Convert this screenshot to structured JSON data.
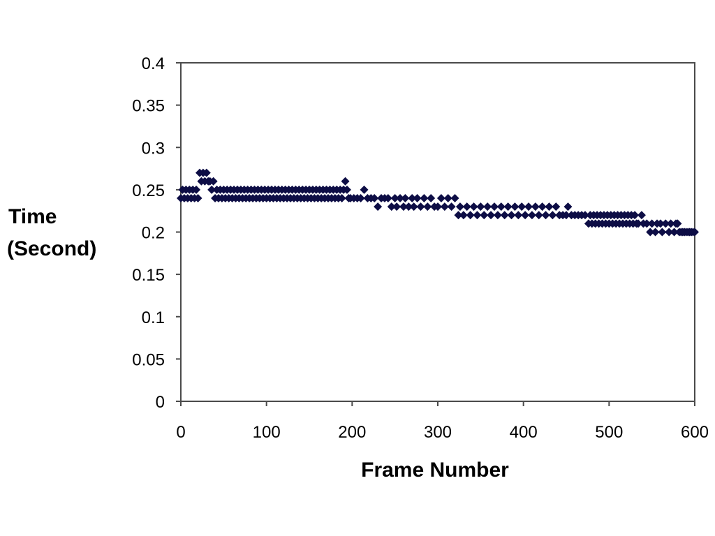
{
  "chart_data": {
    "type": "scatter",
    "title": "",
    "xlabel": "Frame Number",
    "ylabel_lines": [
      "Time",
      "(Second)"
    ],
    "xlim": [
      0,
      600
    ],
    "ylim": [
      0,
      0.4
    ],
    "x_ticks": [
      0,
      100,
      200,
      300,
      400,
      500,
      600
    ],
    "y_ticks": [
      0,
      0.05,
      0.1,
      0.15,
      0.2,
      0.25,
      0.3,
      0.35,
      0.4
    ],
    "x_tick_labels": [
      "0",
      "100",
      "200",
      "300",
      "400",
      "500",
      "600"
    ],
    "y_tick_labels": [
      "0",
      "0.05",
      "0.1",
      "0.15",
      "0.2",
      "0.25",
      "0.3",
      "0.35",
      "0.4"
    ],
    "grid": false,
    "legend": "none",
    "marker": "diamond",
    "marker_color": "#0d0d45",
    "series": [
      {
        "points": [
          [
            0,
            0.24
          ],
          [
            2,
            0.25
          ],
          [
            4,
            0.24
          ],
          [
            6,
            0.25
          ],
          [
            8,
            0.24
          ],
          [
            10,
            0.25
          ],
          [
            12,
            0.24
          ],
          [
            14,
            0.25
          ],
          [
            16,
            0.24
          ],
          [
            18,
            0.25
          ],
          [
            20,
            0.24
          ],
          [
            22,
            0.27
          ],
          [
            24,
            0.26
          ],
          [
            26,
            0.27
          ],
          [
            28,
            0.26
          ],
          [
            30,
            0.27
          ],
          [
            32,
            0.26
          ],
          [
            34,
            0.26
          ],
          [
            36,
            0.25
          ],
          [
            38,
            0.26
          ],
          [
            40,
            0.24
          ],
          [
            42,
            0.25
          ],
          [
            44,
            0.24
          ],
          [
            46,
            0.25
          ],
          [
            48,
            0.24
          ],
          [
            50,
            0.25
          ],
          [
            52,
            0.24
          ],
          [
            54,
            0.25
          ],
          [
            56,
            0.24
          ],
          [
            58,
            0.25
          ],
          [
            60,
            0.24
          ],
          [
            62,
            0.25
          ],
          [
            64,
            0.24
          ],
          [
            66,
            0.25
          ],
          [
            68,
            0.24
          ],
          [
            70,
            0.25
          ],
          [
            72,
            0.24
          ],
          [
            74,
            0.25
          ],
          [
            76,
            0.24
          ],
          [
            78,
            0.25
          ],
          [
            80,
            0.24
          ],
          [
            82,
            0.25
          ],
          [
            84,
            0.24
          ],
          [
            86,
            0.25
          ],
          [
            88,
            0.24
          ],
          [
            90,
            0.25
          ],
          [
            92,
            0.24
          ],
          [
            94,
            0.25
          ],
          [
            96,
            0.24
          ],
          [
            98,
            0.25
          ],
          [
            100,
            0.24
          ],
          [
            102,
            0.25
          ],
          [
            104,
            0.24
          ],
          [
            106,
            0.25
          ],
          [
            108,
            0.24
          ],
          [
            110,
            0.25
          ],
          [
            112,
            0.24
          ],
          [
            114,
            0.25
          ],
          [
            116,
            0.24
          ],
          [
            118,
            0.25
          ],
          [
            120,
            0.24
          ],
          [
            122,
            0.25
          ],
          [
            124,
            0.24
          ],
          [
            126,
            0.25
          ],
          [
            128,
            0.24
          ],
          [
            130,
            0.25
          ],
          [
            132,
            0.24
          ],
          [
            134,
            0.25
          ],
          [
            136,
            0.24
          ],
          [
            138,
            0.25
          ],
          [
            140,
            0.24
          ],
          [
            142,
            0.25
          ],
          [
            144,
            0.24
          ],
          [
            146,
            0.25
          ],
          [
            148,
            0.24
          ],
          [
            150,
            0.25
          ],
          [
            152,
            0.24
          ],
          [
            154,
            0.25
          ],
          [
            156,
            0.24
          ],
          [
            158,
            0.25
          ],
          [
            160,
            0.24
          ],
          [
            162,
            0.25
          ],
          [
            164,
            0.24
          ],
          [
            166,
            0.25
          ],
          [
            168,
            0.24
          ],
          [
            170,
            0.25
          ],
          [
            172,
            0.24
          ],
          [
            174,
            0.25
          ],
          [
            176,
            0.24
          ],
          [
            178,
            0.25
          ],
          [
            180,
            0.24
          ],
          [
            182,
            0.25
          ],
          [
            184,
            0.24
          ],
          [
            186,
            0.25
          ],
          [
            188,
            0.24
          ],
          [
            190,
            0.25
          ],
          [
            192,
            0.26
          ],
          [
            194,
            0.25
          ],
          [
            196,
            0.24
          ],
          [
            198,
            0.24
          ],
          [
            202,
            0.24
          ],
          [
            206,
            0.24
          ],
          [
            210,
            0.24
          ],
          [
            214,
            0.25
          ],
          [
            218,
            0.24
          ],
          [
            222,
            0.24
          ],
          [
            226,
            0.24
          ],
          [
            230,
            0.23
          ],
          [
            234,
            0.24
          ],
          [
            238,
            0.24
          ],
          [
            242,
            0.24
          ],
          [
            246,
            0.23
          ],
          [
            250,
            0.24
          ],
          [
            252,
            0.23
          ],
          [
            256,
            0.24
          ],
          [
            260,
            0.23
          ],
          [
            262,
            0.24
          ],
          [
            266,
            0.23
          ],
          [
            270,
            0.24
          ],
          [
            272,
            0.23
          ],
          [
            276,
            0.24
          ],
          [
            280,
            0.23
          ],
          [
            284,
            0.24
          ],
          [
            288,
            0.23
          ],
          [
            292,
            0.24
          ],
          [
            296,
            0.23
          ],
          [
            300,
            0.23
          ],
          [
            304,
            0.24
          ],
          [
            308,
            0.23
          ],
          [
            312,
            0.24
          ],
          [
            316,
            0.23
          ],
          [
            320,
            0.24
          ],
          [
            324,
            0.22
          ],
          [
            326,
            0.23
          ],
          [
            330,
            0.22
          ],
          [
            334,
            0.23
          ],
          [
            338,
            0.22
          ],
          [
            342,
            0.23
          ],
          [
            346,
            0.22
          ],
          [
            350,
            0.23
          ],
          [
            354,
            0.22
          ],
          [
            358,
            0.23
          ],
          [
            362,
            0.22
          ],
          [
            366,
            0.23
          ],
          [
            370,
            0.22
          ],
          [
            374,
            0.23
          ],
          [
            378,
            0.22
          ],
          [
            382,
            0.23
          ],
          [
            386,
            0.22
          ],
          [
            390,
            0.23
          ],
          [
            394,
            0.22
          ],
          [
            398,
            0.23
          ],
          [
            402,
            0.22
          ],
          [
            406,
            0.23
          ],
          [
            410,
            0.22
          ],
          [
            414,
            0.23
          ],
          [
            418,
            0.22
          ],
          [
            422,
            0.23
          ],
          [
            426,
            0.22
          ],
          [
            430,
            0.23
          ],
          [
            434,
            0.22
          ],
          [
            438,
            0.23
          ],
          [
            442,
            0.22
          ],
          [
            446,
            0.22
          ],
          [
            450,
            0.22
          ],
          [
            452,
            0.23
          ],
          [
            456,
            0.22
          ],
          [
            460,
            0.22
          ],
          [
            464,
            0.22
          ],
          [
            468,
            0.22
          ],
          [
            472,
            0.22
          ],
          [
            476,
            0.21
          ],
          [
            478,
            0.22
          ],
          [
            480,
            0.21
          ],
          [
            482,
            0.22
          ],
          [
            484,
            0.21
          ],
          [
            486,
            0.22
          ],
          [
            488,
            0.21
          ],
          [
            490,
            0.22
          ],
          [
            492,
            0.21
          ],
          [
            494,
            0.22
          ],
          [
            496,
            0.21
          ],
          [
            498,
            0.22
          ],
          [
            500,
            0.21
          ],
          [
            502,
            0.22
          ],
          [
            504,
            0.21
          ],
          [
            506,
            0.22
          ],
          [
            508,
            0.21
          ],
          [
            510,
            0.22
          ],
          [
            512,
            0.21
          ],
          [
            514,
            0.22
          ],
          [
            516,
            0.21
          ],
          [
            518,
            0.22
          ],
          [
            520,
            0.21
          ],
          [
            522,
            0.22
          ],
          [
            524,
            0.21
          ],
          [
            526,
            0.22
          ],
          [
            528,
            0.21
          ],
          [
            530,
            0.22
          ],
          [
            532,
            0.21
          ],
          [
            534,
            0.21
          ],
          [
            538,
            0.22
          ],
          [
            540,
            0.21
          ],
          [
            544,
            0.21
          ],
          [
            548,
            0.2
          ],
          [
            550,
            0.21
          ],
          [
            554,
            0.2
          ],
          [
            556,
            0.21
          ],
          [
            560,
            0.21
          ],
          [
            562,
            0.2
          ],
          [
            566,
            0.21
          ],
          [
            570,
            0.2
          ],
          [
            572,
            0.21
          ],
          [
            576,
            0.2
          ],
          [
            578,
            0.21
          ],
          [
            580,
            0.21
          ],
          [
            582,
            0.2
          ],
          [
            584,
            0.2
          ],
          [
            586,
            0.2
          ],
          [
            588,
            0.2
          ],
          [
            590,
            0.2
          ],
          [
            592,
            0.2
          ],
          [
            594,
            0.2
          ],
          [
            596,
            0.2
          ],
          [
            598,
            0.2
          ],
          [
            600,
            0.2
          ]
        ]
      }
    ]
  }
}
